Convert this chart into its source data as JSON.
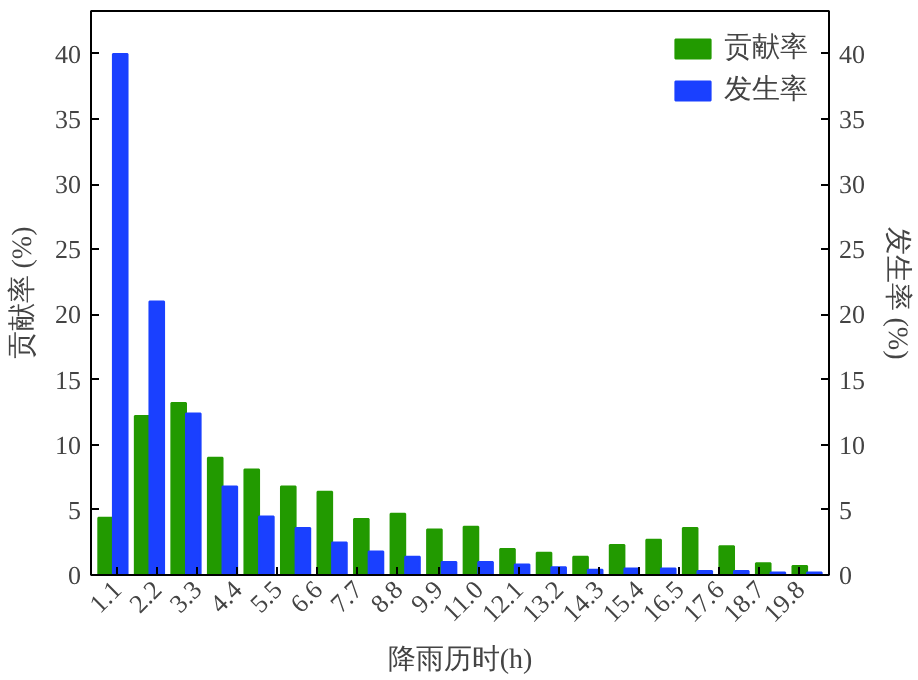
{
  "chart_data": {
    "type": "bar",
    "xlabel": "降雨历时(h)",
    "ylabel": "贡献率 (%)",
    "y2label": "发生率 (%)",
    "x": [
      1,
      2,
      3,
      4,
      5,
      6,
      7,
      8,
      9,
      10,
      11,
      12,
      13,
      14,
      15,
      16,
      17,
      18,
      19,
      20
    ],
    "series": [
      {
        "name": "贡献率",
        "color": "#229a00",
        "values": [
          4.4,
          12.2,
          13.2,
          9.0,
          8.1,
          6.8,
          6.4,
          4.3,
          4.7,
          3.5,
          3.7,
          2.0,
          1.7,
          1.4,
          2.3,
          2.7,
          3.6,
          2.2,
          0.9,
          0.7
        ]
      },
      {
        "name": "发生率",
        "color": "#1a40ff",
        "values": [
          40.0,
          21.0,
          12.4,
          6.8,
          4.5,
          3.6,
          2.5,
          1.8,
          1.4,
          1.0,
          1.0,
          0.8,
          0.6,
          0.4,
          0.5,
          0.5,
          0.3,
          0.3,
          0.2,
          0.2
        ]
      }
    ],
    "xlim": [
      0.4,
      20.6
    ],
    "xticks": [
      1.1,
      2.2,
      3.3,
      4.4,
      5.5,
      6.6,
      7.7,
      8.8,
      9.9,
      {
        "value": 11,
        "label": "11.0"
      },
      12.1,
      13.2,
      14.3,
      15.4,
      16.5,
      17.6,
      18.7,
      19.8
    ],
    "ylim": [
      0,
      43.3
    ],
    "yticks": [
      0,
      5,
      10,
      15,
      20,
      25,
      30,
      35,
      40
    ],
    "y2lim": [
      0,
      43.3
    ],
    "y2ticks": [
      0,
      5,
      10,
      15,
      20,
      25,
      30,
      35,
      40
    ],
    "legend": "top right",
    "grid": false
  }
}
